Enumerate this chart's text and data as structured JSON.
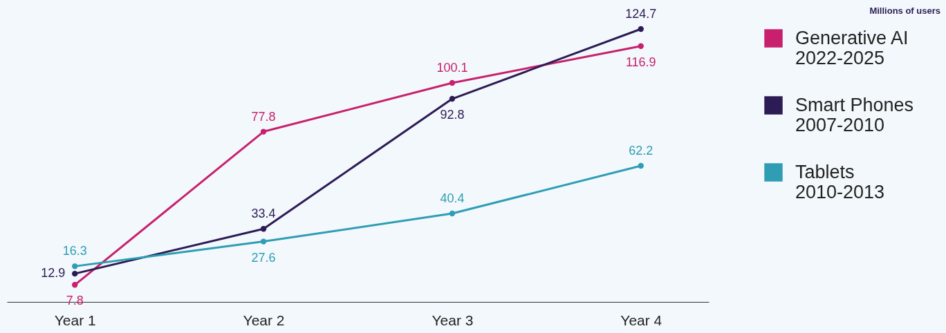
{
  "chart_data": {
    "type": "line",
    "categories": [
      "Year 1",
      "Year 2",
      "Year 3",
      "Year 4"
    ],
    "series": [
      {
        "name": "Generative AI 2022-2025",
        "color": "#c8206e",
        "values": [
          7.8,
          77.8,
          100.1,
          116.9
        ]
      },
      {
        "name": "Smart Phones 2007-2010",
        "color": "#2d1b55",
        "values": [
          12.9,
          33.4,
          92.8,
          124.7
        ]
      },
      {
        "name": "Tablets 2010-2013",
        "color": "#2f9db4",
        "values": [
          16.3,
          27.6,
          40.4,
          62.2
        ]
      }
    ],
    "annotations": [
      "Millions of users"
    ],
    "data_labels": true,
    "marker": "circle",
    "legend": "right",
    "grid": false
  }
}
